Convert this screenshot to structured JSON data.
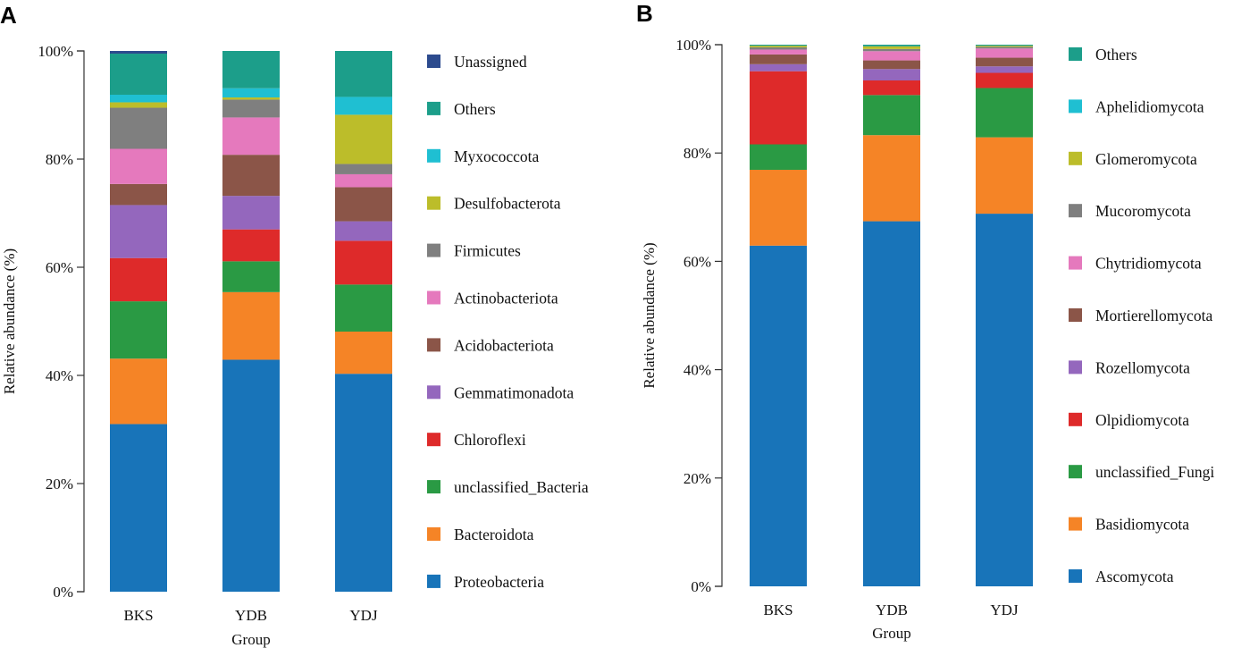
{
  "colors": {
    "Proteobacteria": "#1874b9",
    "Bacteroidota": "#f58426",
    "unclassified_Bacteria": "#2a9a44",
    "Chloroflexi": "#de2a2a",
    "Gemmatimonadota": "#9467bd",
    "Acidobacteriota": "#8b5548",
    "Actinobacteriota": "#e579bd",
    "Firmicutes": "#7f7f7f",
    "Desulfobacterota": "#bcbd2a",
    "Myxococcota": "#1fbfd2",
    "Others": "#1c9e8a",
    "Unassigned": "#2c4b8e",
    "Ascomycota": "#1874b9",
    "Basidiomycota": "#f58426",
    "unclassified_Fungi": "#2a9a44",
    "Olpidiomycota": "#de2a2a",
    "Rozellomycota": "#9467bd",
    "Mortierellomycota": "#8b5548",
    "Chytridiomycota": "#e579bd",
    "Mucoromycota": "#7f7f7f",
    "Glomeromycota": "#bcbd2a",
    "Aphelidiomycota": "#1fbfd2"
  },
  "chart_data": [
    {
      "panel": "A",
      "type": "bar",
      "stacked": true,
      "xlabel": "Group",
      "ylabel": "Relative abundance (%)",
      "ylim": [
        0,
        100
      ],
      "yticks": [
        "0%",
        "20%",
        "40%",
        "60%",
        "80%",
        "100%"
      ],
      "categories": [
        "BKS",
        "YDB",
        "YDJ"
      ],
      "series": [
        {
          "name": "Proteobacteria",
          "values": [
            31.0,
            42.9,
            40.3
          ]
        },
        {
          "name": "Bacteroidota",
          "values": [
            12.1,
            12.5,
            7.8
          ]
        },
        {
          "name": "unclassified_Bacteria",
          "values": [
            10.6,
            5.7,
            8.7
          ]
        },
        {
          "name": "Chloroflexi",
          "values": [
            8.0,
            5.9,
            8.1
          ]
        },
        {
          "name": "Gemmatimonadota",
          "values": [
            9.8,
            6.2,
            3.6
          ]
        },
        {
          "name": "Acidobacteriota",
          "values": [
            3.9,
            7.6,
            6.3
          ]
        },
        {
          "name": "Actinobacteriota",
          "values": [
            6.5,
            6.9,
            2.4
          ]
        },
        {
          "name": "Firmicutes",
          "values": [
            7.6,
            3.3,
            1.9
          ]
        },
        {
          "name": "Desulfobacterota",
          "values": [
            1.0,
            0.4,
            9.1
          ]
        },
        {
          "name": "Myxococcota",
          "values": [
            1.4,
            1.7,
            3.3
          ]
        },
        {
          "name": "Others",
          "values": [
            7.6,
            6.9,
            8.5
          ]
        },
        {
          "name": "Unassigned",
          "values": [
            0.5,
            0.0,
            0.0
          ]
        }
      ],
      "legend": [
        "Unassigned",
        "Others",
        "Myxococcota",
        "Desulfobacterota",
        "Firmicutes",
        "Actinobacteriota",
        "Acidobacteriota",
        "Gemmatimonadota",
        "Chloroflexi",
        "unclassified_Bacteria",
        "Bacteroidota",
        "Proteobacteria"
      ],
      "legend_labels": [
        "Unassigned",
        "Others",
        "Myxococcota",
        "Desulfobacterota",
        "Firmicutes",
        "Actinobacteriota",
        "Acidobacteriota",
        "Gemmatimonadota",
        "Chloroflexi",
        "unclassified_Bacteria",
        "Bacteroidota",
        "Proteobacteria"
      ]
    },
    {
      "panel": "B",
      "type": "bar",
      "stacked": true,
      "xlabel": "Group",
      "ylabel": "Relative abundance (%)",
      "ylim": [
        0,
        100
      ],
      "yticks": [
        "0%",
        "20%",
        "40%",
        "60%",
        "80%",
        "100%"
      ],
      "categories": [
        "BKS",
        "YDB",
        "YDJ"
      ],
      "series": [
        {
          "name": "Ascomycota",
          "values": [
            62.9,
            67.4,
            68.8
          ]
        },
        {
          "name": "Basidiomycota",
          "values": [
            14.0,
            15.9,
            14.1
          ]
        },
        {
          "name": "unclassified_Fungi",
          "values": [
            4.7,
            7.4,
            9.1
          ]
        },
        {
          "name": "Olpidiomycota",
          "values": [
            13.5,
            2.7,
            2.8
          ]
        },
        {
          "name": "Rozellomycota",
          "values": [
            1.3,
            2.1,
            1.2
          ]
        },
        {
          "name": "Mortierellomycota",
          "values": [
            1.8,
            1.6,
            1.6
          ]
        },
        {
          "name": "Chytridiomycota",
          "values": [
            0.9,
            1.7,
            1.7
          ]
        },
        {
          "name": "Mucoromycota",
          "values": [
            0.4,
            0.4,
            0.3
          ]
        },
        {
          "name": "Glomeromycota",
          "values": [
            0.3,
            0.5,
            0.2
          ]
        },
        {
          "name": "Aphelidiomycota",
          "values": [
            0.0,
            0.0,
            0.0
          ]
        },
        {
          "name": "Others",
          "values": [
            0.2,
            0.3,
            0.2
          ]
        }
      ],
      "legend": [
        "Others",
        "Aphelidiomycota",
        "Glomeromycota",
        "Mucoromycota",
        "Chytridiomycota",
        "Mortierellomycota",
        "Rozellomycota",
        "Olpidiomycota",
        "unclassified_Fungi",
        "Basidiomycota",
        "Ascomycota"
      ],
      "legend_labels": [
        "Others",
        "Aphelidiomycota",
        "Glomeromycota",
        "Mucoromycota",
        "Chytridiomycota",
        "Mortierellomycota",
        "Rozellomycota",
        "Olpidiomycota",
        "unclassified_Fungi",
        "Basidiomycota",
        "Ascomycota"
      ]
    }
  ]
}
